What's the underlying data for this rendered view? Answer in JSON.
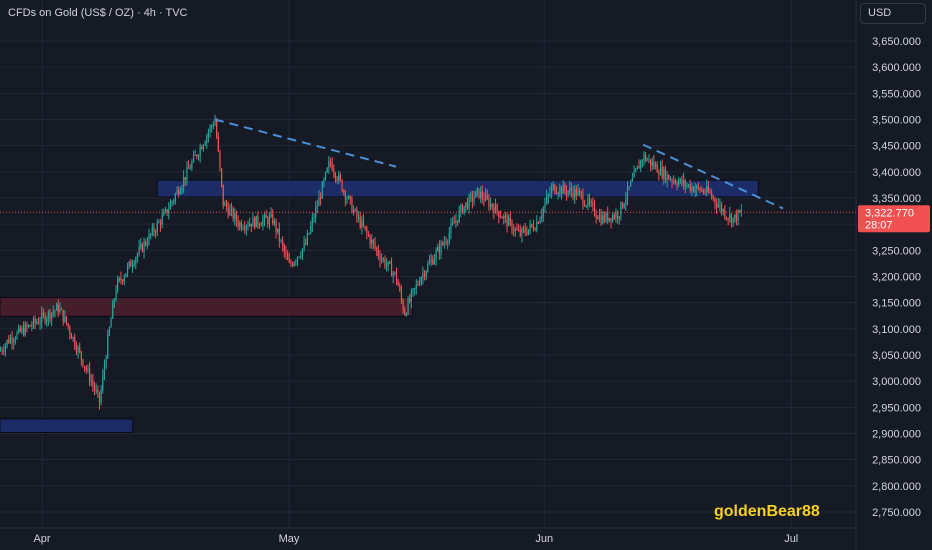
{
  "header": {
    "symbol_title": "CFDs on Gold (US$ / OZ) · 4h · TVC",
    "currency": "USD"
  },
  "watermark": "goldenBear88",
  "colors": {
    "background": "#161a25",
    "grid": "#232736",
    "text": "#d1d4dc",
    "up": "#26a69a",
    "down": "#ef5350",
    "price_tag": "#f0504f",
    "resistance_zone_fill": "#1c2f6e",
    "support_zone_fill": "#4a1f2c",
    "trendline": "#4a8fd6",
    "watermark": "#f5d020"
  },
  "chart_data": {
    "type": "candlestick",
    "timeframe": "4h",
    "x_labels": [
      "Apr",
      "May",
      "Jun",
      "Jul"
    ],
    "y_ticks": [
      "3,650.000",
      "3,600.000",
      "3,550.000",
      "3,500.000",
      "3,450.000",
      "3,400.000",
      "3,350.000",
      "3,300.000",
      "3,250.000",
      "3,200.000",
      "3,150.000",
      "3,100.000",
      "3,050.000",
      "3,000.000",
      "2,950.000",
      "2,900.000",
      "2,850.000",
      "2,800.000",
      "2,750.000"
    ],
    "y_range": [
      2730,
      3690
    ],
    "current_price": {
      "value": "3,322.770",
      "countdown": "28:07",
      "value_num": 3322.77
    },
    "price_path": [
      {
        "date": "2025-03-25",
        "price": 3020
      },
      {
        "date": "2025-03-28",
        "price": 3080
      },
      {
        "date": "2025-04-03",
        "price": 3140
      },
      {
        "date": "2025-04-04",
        "price": 3110
      },
      {
        "date": "2025-04-07",
        "price": 3000
      },
      {
        "date": "2025-04-08",
        "price": 2960
      },
      {
        "date": "2025-04-09",
        "price": 3080
      },
      {
        "date": "2025-04-10",
        "price": 3180
      },
      {
        "date": "2025-04-12",
        "price": 3230
      },
      {
        "date": "2025-04-16",
        "price": 3320
      },
      {
        "date": "2025-04-18",
        "price": 3380
      },
      {
        "date": "2025-04-22",
        "price": 3500
      },
      {
        "date": "2025-04-23",
        "price": 3340
      },
      {
        "date": "2025-04-25",
        "price": 3300
      },
      {
        "date": "2025-04-29",
        "price": 3310
      },
      {
        "date": "2025-05-01",
        "price": 3220
      },
      {
        "date": "2025-05-03",
        "price": 3260
      },
      {
        "date": "2025-05-06",
        "price": 3420
      },
      {
        "date": "2025-05-09",
        "price": 3320
      },
      {
        "date": "2025-05-12",
        "price": 3240
      },
      {
        "date": "2025-05-14",
        "price": 3200
      },
      {
        "date": "2025-05-15",
        "price": 3130
      },
      {
        "date": "2025-05-17",
        "price": 3200
      },
      {
        "date": "2025-05-20",
        "price": 3270
      },
      {
        "date": "2025-05-22",
        "price": 3330
      },
      {
        "date": "2025-05-24",
        "price": 3360
      },
      {
        "date": "2025-05-26",
        "price": 3330
      },
      {
        "date": "2025-05-29",
        "price": 3280
      },
      {
        "date": "2025-05-31",
        "price": 3300
      },
      {
        "date": "2025-06-02",
        "price": 3370
      },
      {
        "date": "2025-06-05",
        "price": 3360
      },
      {
        "date": "2025-06-08",
        "price": 3310
      },
      {
        "date": "2025-06-10",
        "price": 3320
      },
      {
        "date": "2025-06-13",
        "price": 3430
      },
      {
        "date": "2025-06-16",
        "price": 3390
      },
      {
        "date": "2025-06-19",
        "price": 3370
      },
      {
        "date": "2025-06-21",
        "price": 3360
      },
      {
        "date": "2025-06-23",
        "price": 3320
      },
      {
        "date": "2025-06-24",
        "price": 3310
      },
      {
        "date": "2025-06-25",
        "price": 3322.77
      }
    ],
    "zones": [
      {
        "type": "resistance",
        "date_start": "2025-04-15",
        "date_end": "2025-06-27",
        "price_low": 3352,
        "price_high": 3384
      },
      {
        "type": "support",
        "date_start": "2025-03-25",
        "date_end": "2025-05-16",
        "price_low": 3124,
        "price_high": 3160
      },
      {
        "type": "demand",
        "date_start": "2025-03-20",
        "date_end": "2025-04-12",
        "price_low": 2902,
        "price_high": 2928
      }
    ],
    "trendlines": [
      {
        "date1": "2025-04-22",
        "price1": 3500,
        "date2": "2025-05-14",
        "price2": 3410
      },
      {
        "date1": "2025-06-13",
        "price1": 3452,
        "date2": "2025-06-30",
        "price2": 3330
      }
    ]
  }
}
